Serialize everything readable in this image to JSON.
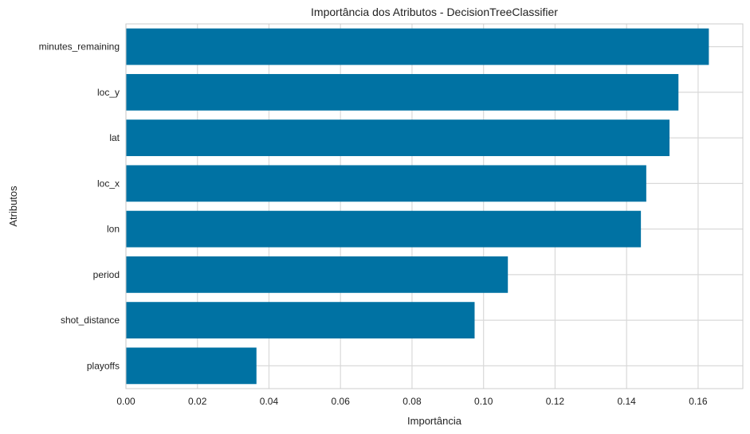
{
  "chart_data": {
    "type": "bar",
    "orientation": "horizontal",
    "title": "Importância dos Atributos - DecisionTreeClassifier",
    "xlabel": "Importância",
    "ylabel": "Atributos",
    "categories": [
      "minutes_remaining",
      "loc_y",
      "lat",
      "loc_x",
      "lon",
      "period",
      "shot_distance",
      "playoffs"
    ],
    "values": [
      0.163,
      0.1545,
      0.152,
      0.1455,
      0.144,
      0.1068,
      0.0975,
      0.0365
    ],
    "xlim": [
      0,
      0.1725
    ],
    "xticks": [
      0.0,
      0.02,
      0.04,
      0.06,
      0.08,
      0.1,
      0.12,
      0.14,
      0.16
    ],
    "xtick_labels": [
      "0.00",
      "0.02",
      "0.04",
      "0.06",
      "0.08",
      "0.10",
      "0.12",
      "0.14",
      "0.16"
    ],
    "grid": true,
    "bar_color": "#0072a3",
    "grid_color": "#d9d9d9",
    "frame_color": "#cccccc"
  }
}
